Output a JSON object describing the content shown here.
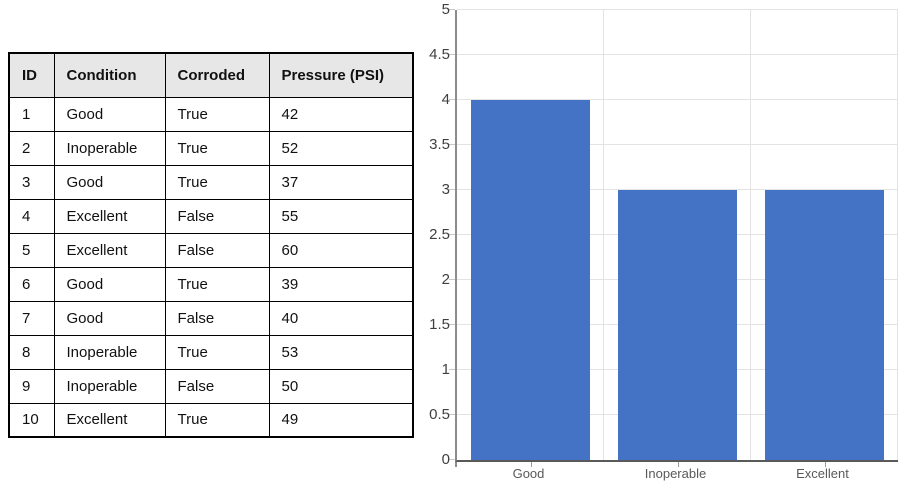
{
  "table": {
    "headers": [
      "ID",
      "Condition",
      "Corroded",
      "Pressure (PSI)"
    ],
    "rows": [
      [
        "1",
        "Good",
        "True",
        "42"
      ],
      [
        "2",
        "Inoperable",
        "True",
        "52"
      ],
      [
        "3",
        "Good",
        "True",
        "37"
      ],
      [
        "4",
        "Excellent",
        "False",
        "55"
      ],
      [
        "5",
        "Excellent",
        "False",
        "60"
      ],
      [
        "6",
        "Good",
        "True",
        "39"
      ],
      [
        "7",
        "Good",
        "False",
        "40"
      ],
      [
        "8",
        "Inoperable",
        "True",
        "53"
      ],
      [
        "9",
        "Inoperable",
        "False",
        "50"
      ],
      [
        "10",
        "Excellent",
        "True",
        "49"
      ]
    ]
  },
  "chart_data": {
    "type": "bar",
    "categories": [
      "Good",
      "Inoperable",
      "Excellent"
    ],
    "values": [
      4,
      3,
      3
    ],
    "title": "",
    "xlabel": "",
    "ylabel": "",
    "ylim": [
      0,
      5
    ],
    "ytick_step": 0.5,
    "ytick_labels": [
      "0",
      "0.5",
      "1",
      "1.5",
      "2",
      "2.5",
      "3",
      "3.5",
      "4",
      "4.5",
      "5"
    ],
    "grid": "horizontal-and-vertical",
    "legend_position": "none",
    "bar_color": "#4472C4"
  },
  "colors": {
    "table_header_bg": "#E7E7E7",
    "table_border": "#000000",
    "bar": "#4472C4",
    "gridline": "#E3E3E3",
    "y_axis_line": "#8C8C8C",
    "x_axis_line": "#595959",
    "tick_label": "#3F3F3F",
    "category_label": "#595959"
  }
}
